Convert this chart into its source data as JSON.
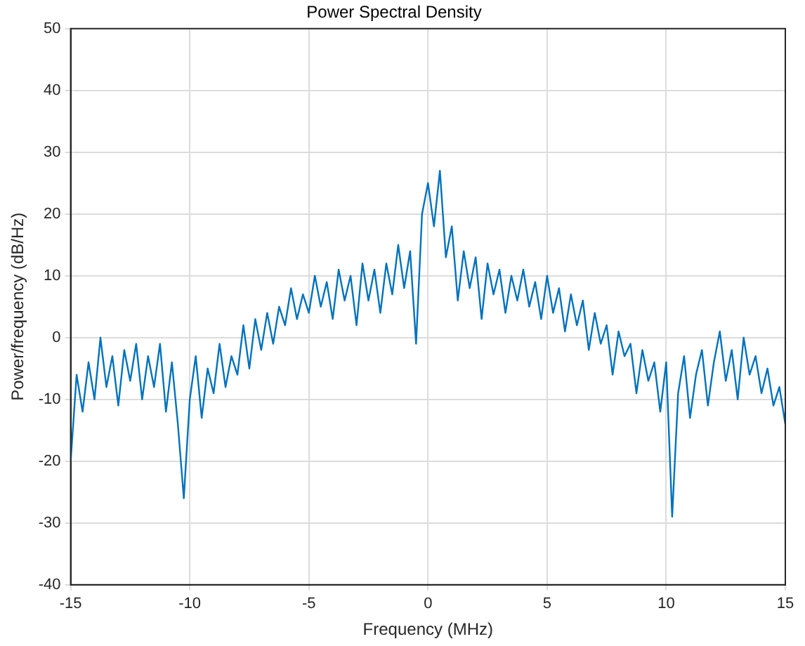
{
  "chart_data": {
    "type": "line",
    "title": "Power Spectral Density",
    "xlabel": "Frequency (MHz)",
    "ylabel": "Power/frequency (dB/Hz)",
    "x": [
      -15,
      -14.75,
      -14.5,
      -14.25,
      -14,
      -13.75,
      -13.5,
      -13.25,
      -13,
      -12.75,
      -12.5,
      -12.25,
      -12,
      -11.75,
      -11.5,
      -11.25,
      -11,
      -10.75,
      -10.5,
      -10.25,
      -10,
      -9.75,
      -9.5,
      -9.25,
      -9,
      -8.75,
      -8.5,
      -8.25,
      -8,
      -7.75,
      -7.5,
      -7.25,
      -7,
      -6.75,
      -6.5,
      -6.25,
      -6,
      -5.75,
      -5.5,
      -5.25,
      -5,
      -4.75,
      -4.5,
      -4.25,
      -4,
      -3.75,
      -3.5,
      -3.25,
      -3,
      -2.75,
      -2.5,
      -2.25,
      -2,
      -1.75,
      -1.5,
      -1.25,
      -1,
      -0.75,
      -0.5,
      -0.25,
      0,
      0.25,
      0.5,
      0.75,
      1,
      1.25,
      1.5,
      1.75,
      2,
      2.25,
      2.5,
      2.75,
      3,
      3.25,
      3.5,
      3.75,
      4,
      4.25,
      4.5,
      4.75,
      5,
      5.25,
      5.5,
      5.75,
      6,
      6.25,
      6.5,
      6.75,
      7,
      7.25,
      7.5,
      7.75,
      8,
      8.25,
      8.5,
      8.75,
      9,
      9.25,
      9.5,
      9.75,
      10,
      10.25,
      10.5,
      10.75,
      11,
      11.25,
      11.5,
      11.75,
      12,
      12.25,
      12.5,
      12.75,
      13,
      13.25,
      13.5,
      13.75,
      14,
      14.25,
      14.5,
      14.75,
      15
    ],
    "series": [
      {
        "color": "#0072bd",
        "values": [
          -20,
          -6,
          -12,
          -4,
          -10,
          0,
          -8,
          -3,
          -11,
          -2,
          -7,
          -1,
          -10,
          -3,
          -8,
          -1,
          -12,
          -4,
          -14,
          -26,
          -10,
          -3,
          -13,
          -5,
          -9,
          -1,
          -8,
          -3,
          -6,
          2,
          -5,
          3,
          -2,
          4,
          -1,
          5,
          2,
          8,
          3,
          7,
          4,
          10,
          5,
          9,
          3,
          11,
          6,
          10,
          2,
          12,
          6,
          11,
          4,
          12,
          7,
          15,
          8,
          14,
          -1,
          20,
          25,
          18,
          27,
          13,
          18,
          6,
          14,
          8,
          13,
          3,
          12,
          7,
          11,
          4,
          10,
          6,
          11,
          5,
          9,
          3,
          10,
          4,
          8,
          1,
          7,
          2,
          6,
          -2,
          4,
          -1,
          2,
          -6,
          1,
          -3,
          -1,
          -9,
          -2,
          -7,
          -4,
          -12,
          -4,
          -29,
          -9,
          -3,
          -13,
          -6,
          -2,
          -11,
          -4,
          1,
          -7,
          -2,
          -10,
          0,
          -6,
          -3,
          -9,
          -5,
          -11,
          -8,
          -14
        ]
      }
    ],
    "xlim": [
      -15,
      15
    ],
    "xticks": [
      -15,
      -10,
      -5,
      0,
      5,
      10,
      15
    ],
    "ylim": [
      -40,
      50
    ],
    "yticks": [
      -40,
      -30,
      -20,
      -10,
      0,
      10,
      20,
      30,
      40,
      50
    ],
    "grid": true,
    "legend": false,
    "marker": "none",
    "line_style": "solid"
  }
}
